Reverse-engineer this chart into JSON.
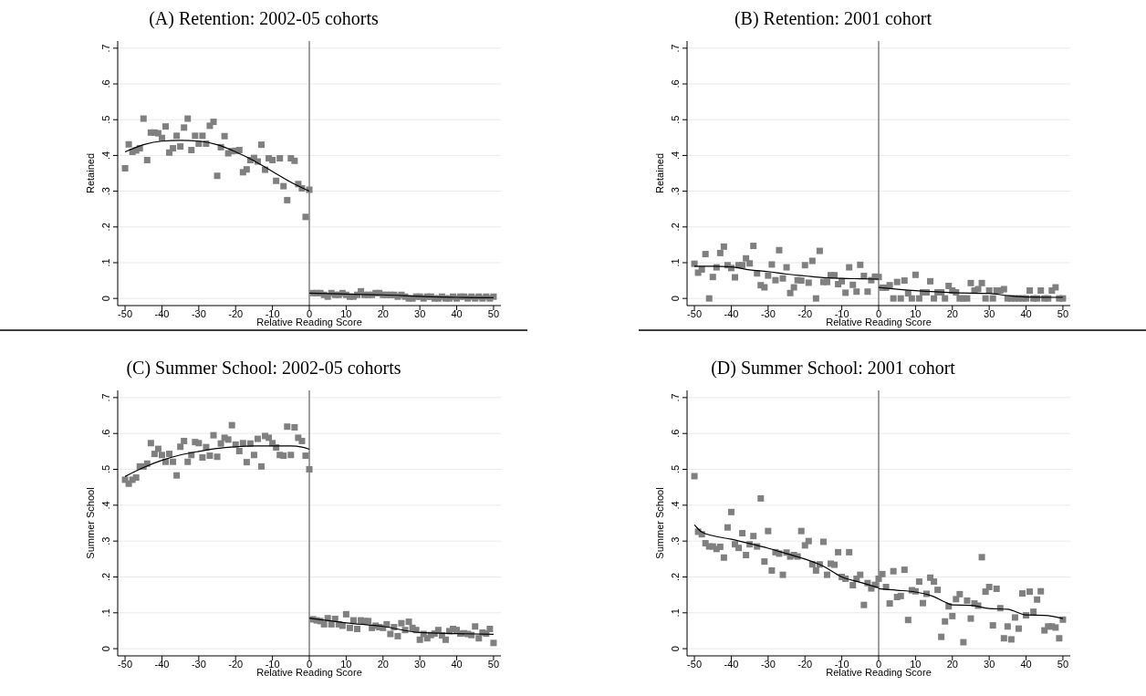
{
  "chart_data": [
    {
      "type": "scatter",
      "title": "(A) Retention: 2002-05 cohorts",
      "xlabel": "Relative Reading Score",
      "ylabel": "Retained",
      "xlim": [
        -52,
        52
      ],
      "ylim": [
        -0.02,
        0.72
      ],
      "xticks": [
        -50,
        -40,
        -30,
        -20,
        -10,
        0,
        10,
        20,
        30,
        40,
        50
      ],
      "yticks": [
        {
          "value": 0,
          "label": "0"
        },
        {
          "value": 0.1,
          "label": ".1"
        },
        {
          "value": 0.2,
          "label": ".2"
        },
        {
          "value": 0.3,
          "label": ".3"
        },
        {
          "value": 0.4,
          "label": ".4"
        },
        {
          "value": 0.5,
          "label": ".5"
        },
        {
          "value": 0.6,
          "label": ".6"
        },
        {
          "value": 0.7,
          "label": ".7"
        }
      ],
      "grid": "y",
      "marker": "square",
      "ref_lines": [
        {
          "axis": "x",
          "value": 0,
          "color": "#808080"
        }
      ],
      "x": [
        -50,
        -49,
        -48,
        -47,
        -46,
        -45,
        -44,
        -43,
        -42,
        -41,
        -40,
        -39,
        -38,
        -37,
        -36,
        -35,
        -34,
        -33,
        -32,
        -31,
        -30,
        -29,
        -28,
        -27,
        -26,
        -25,
        -24,
        -23,
        -22,
        -21,
        -20,
        -19,
        -18,
        -17,
        -16,
        -15,
        -14,
        -13,
        -12,
        -11,
        -10,
        -9,
        -8,
        -7,
        -6,
        -5,
        -4,
        -3,
        -2,
        -1,
        0,
        1,
        2,
        3,
        4,
        5,
        6,
        7,
        8,
        9,
        10,
        11,
        12,
        13,
        14,
        15,
        16,
        17,
        18,
        19,
        20,
        21,
        22,
        23,
        24,
        25,
        26,
        27,
        28,
        29,
        30,
        31,
        32,
        33,
        34,
        35,
        36,
        37,
        38,
        39,
        40,
        41,
        42,
        43,
        44,
        45,
        46,
        47,
        48,
        49,
        50
      ],
      "series": [
        {
          "color": "#808080",
          "values": [
            0.364,
            0.431,
            0.41,
            0.414,
            0.42,
            0.503,
            0.387,
            0.464,
            0.464,
            0.462,
            0.449,
            0.481,
            0.408,
            0.42,
            0.455,
            0.425,
            0.478,
            0.503,
            0.415,
            0.455,
            0.433,
            0.455,
            0.433,
            0.483,
            0.494,
            0.343,
            0.423,
            0.454,
            0.406,
            0.412,
            0.413,
            0.415,
            0.353,
            0.361,
            0.387,
            0.393,
            0.383,
            0.43,
            0.36,
            0.392,
            0.387,
            0.329,
            0.392,
            0.314,
            0.275,
            0.392,
            0.385,
            0.32,
            0.308,
            0.228,
            0.304,
            0.015,
            0.015,
            0.015,
            0.01,
            0.005,
            0.015,
            0.01,
            0.01,
            0.015,
            0.01,
            0.005,
            0.005,
            0.01,
            0.02,
            0.01,
            0.01,
            0.01,
            0.015,
            0.015,
            0.01,
            0.01,
            0.01,
            0.01,
            0.005,
            0.01,
            0.005,
            0,
            0,
            0.005,
            0.005,
            0,
            0.005,
            0.005,
            0,
            0,
            0.005,
            0,
            0,
            0.005,
            0,
            0.005,
            0.005,
            0,
            0.005,
            0,
            0.005,
            0,
            0.005,
            0,
            0.005
          ]
        },
        {
          "type": "line",
          "color": "#000000",
          "x": [
            -50,
            -45,
            -40,
            -35,
            -30,
            -25,
            -20,
            -15,
            -10,
            -5,
            0
          ],
          "marker": "none",
          "values": [
            0.41,
            0.43,
            0.44,
            0.442,
            0.44,
            0.43,
            0.41,
            0.385,
            0.355,
            0.325,
            0.3
          ]
        },
        {
          "type": "line",
          "color": "#000000",
          "x": [
            0,
            10,
            20,
            30,
            40,
            50
          ],
          "marker": "none",
          "values": [
            0.015,
            0.012,
            0.01,
            0.006,
            0.003,
            0.002
          ]
        }
      ]
    },
    {
      "type": "scatter",
      "title": "(B) Retention: 2001 cohort",
      "xlabel": "Relative Reading Score",
      "ylabel": "Retained",
      "xlim": [
        -52,
        52
      ],
      "ylim": [
        -0.02,
        0.72
      ],
      "xticks": [
        -50,
        -40,
        -30,
        -20,
        -10,
        0,
        10,
        20,
        30,
        40,
        50
      ],
      "yticks": [
        {
          "value": 0,
          "label": "0"
        },
        {
          "value": 0.1,
          "label": ".1"
        },
        {
          "value": 0.2,
          "label": ".2"
        },
        {
          "value": 0.3,
          "label": ".3"
        },
        {
          "value": 0.4,
          "label": ".4"
        },
        {
          "value": 0.5,
          "label": ".5"
        },
        {
          "value": 0.6,
          "label": ".6"
        },
        {
          "value": 0.7,
          "label": ".7"
        }
      ],
      "grid": "y",
      "marker": "square",
      "ref_lines": [
        {
          "axis": "x",
          "value": 0,
          "color": "#808080"
        }
      ],
      "x": [
        -50,
        -49,
        -48,
        -47,
        -46,
        -45,
        -44,
        -43,
        -42,
        -41,
        -40,
        -39,
        -38,
        -37,
        -36,
        -35,
        -34,
        -33,
        -32,
        -31,
        -30,
        -29,
        -28,
        -27,
        -26,
        -25,
        -24,
        -23,
        -22,
        -21,
        -20,
        -19,
        -18,
        -17,
        -16,
        -15,
        -14,
        -13,
        -12,
        -11,
        -10,
        -9,
        -8,
        -7,
        -6,
        -5,
        -4,
        -3,
        -2,
        -1,
        0,
        1,
        2,
        3,
        4,
        5,
        6,
        7,
        8,
        9,
        10,
        11,
        12,
        13,
        14,
        15,
        16,
        17,
        18,
        19,
        20,
        21,
        22,
        23,
        24,
        25,
        26,
        27,
        28,
        29,
        30,
        31,
        32,
        33,
        34,
        35,
        36,
        37,
        38,
        39,
        40,
        41,
        42,
        43,
        44,
        45,
        46,
        47,
        48,
        49,
        50
      ],
      "series": [
        {
          "color": "#808080",
          "values": [
            0.097,
            0.072,
            0.081,
            0.124,
            0,
            0.06,
            0.087,
            0.127,
            0.145,
            0.093,
            0.085,
            0.059,
            0.093,
            0.093,
            0.112,
            0.098,
            0.147,
            0.07,
            0.037,
            0.031,
            0.064,
            0.095,
            0.051,
            0.135,
            0.056,
            0.087,
            0.015,
            0.031,
            0.051,
            0.05,
            0.093,
            0.044,
            0.105,
            0,
            0.133,
            0.046,
            0.046,
            0.065,
            0.065,
            0.04,
            0.048,
            0.016,
            0.087,
            0.038,
            0.019,
            0.094,
            0.063,
            0.019,
            0.051,
            0.061,
            0.06,
            0.03,
            0.03,
            0.037,
            0,
            0.046,
            0,
            0.05,
            0.014,
            0,
            0.066,
            0,
            0.017,
            0.017,
            0.048,
            0,
            0.017,
            0.017,
            0,
            0.035,
            0.022,
            0.017,
            0,
            0,
            0,
            0.043,
            0.022,
            0.026,
            0.043,
            0,
            0.022,
            0,
            0.022,
            0.022,
            0.026,
            0,
            0,
            0,
            0,
            0,
            0,
            0.022,
            0,
            0,
            0.022,
            0,
            0,
            0.022,
            0.031,
            0,
            0
          ]
        },
        {
          "type": "line",
          "color": "#000000",
          "x": [
            -50,
            -45,
            -40,
            -35,
            -30,
            -25,
            -20,
            -15,
            -10,
            -5,
            0
          ],
          "marker": "none",
          "values": [
            0.09,
            0.09,
            0.088,
            0.08,
            0.075,
            0.068,
            0.063,
            0.058,
            0.056,
            0.055,
            0.054
          ]
        },
        {
          "type": "line",
          "color": "#000000",
          "x": [
            0,
            10,
            20,
            30,
            35,
            40,
            50
          ],
          "marker": "none",
          "values": [
            0.031,
            0.022,
            0.016,
            0.014,
            0.008,
            0.004,
            0.003
          ]
        }
      ]
    },
    {
      "type": "scatter",
      "title": "(C) Summer School: 2002-05 cohorts",
      "xlabel": "Relative Reading Score",
      "ylabel": "Summer School",
      "xlim": [
        -52,
        52
      ],
      "ylim": [
        -0.02,
        0.72
      ],
      "xticks": [
        -50,
        -40,
        -30,
        -20,
        -10,
        0,
        10,
        20,
        30,
        40,
        50
      ],
      "yticks": [
        {
          "value": 0,
          "label": "0"
        },
        {
          "value": 0.1,
          "label": ".1"
        },
        {
          "value": 0.2,
          "label": ".2"
        },
        {
          "value": 0.3,
          "label": ".3"
        },
        {
          "value": 0.4,
          "label": ".4"
        },
        {
          "value": 0.5,
          "label": ".5"
        },
        {
          "value": 0.6,
          "label": ".6"
        },
        {
          "value": 0.7,
          "label": ".7"
        }
      ],
      "grid": "y",
      "marker": "square",
      "ref_lines": [
        {
          "axis": "x",
          "value": 0,
          "color": "#808080"
        }
      ],
      "x": [
        -50,
        -49,
        -48,
        -47,
        -46,
        -45,
        -44,
        -43,
        -42,
        -41,
        -40,
        -39,
        -38,
        -37,
        -36,
        -35,
        -34,
        -33,
        -32,
        -31,
        -30,
        -29,
        -28,
        -27,
        -26,
        -25,
        -24,
        -23,
        -22,
        -21,
        -20,
        -19,
        -18,
        -17,
        -16,
        -15,
        -14,
        -13,
        -12,
        -11,
        -10,
        -9,
        -8,
        -7,
        -6,
        -5,
        -4,
        -3,
        -2,
        -1,
        0,
        1,
        2,
        3,
        4,
        5,
        6,
        7,
        8,
        9,
        10,
        11,
        12,
        13,
        14,
        15,
        16,
        17,
        18,
        19,
        20,
        21,
        22,
        23,
        24,
        25,
        26,
        27,
        28,
        29,
        30,
        31,
        32,
        33,
        34,
        35,
        36,
        37,
        38,
        39,
        40,
        41,
        42,
        43,
        44,
        45,
        46,
        47,
        48,
        49,
        50
      ],
      "series": [
        {
          "color": "#808080",
          "values": [
            0.471,
            0.46,
            0.471,
            0.477,
            0.508,
            0.508,
            0.516,
            0.573,
            0.543,
            0.557,
            0.54,
            0.521,
            0.543,
            0.521,
            0.483,
            0.563,
            0.579,
            0.521,
            0.54,
            0.576,
            0.573,
            0.533,
            0.562,
            0.538,
            0.595,
            0.535,
            0.572,
            0.588,
            0.583,
            0.623,
            0.569,
            0.551,
            0.573,
            0.52,
            0.572,
            0.54,
            0.585,
            0.508,
            0.593,
            0.588,
            0.573,
            0.561,
            0.54,
            0.538,
            0.619,
            0.54,
            0.617,
            0.588,
            0.579,
            0.538,
            0.5,
            0.082,
            0.079,
            0.077,
            0.068,
            0.085,
            0.068,
            0.083,
            0.068,
            0.064,
            0.096,
            0.058,
            0.079,
            0.055,
            0.079,
            0.077,
            0.077,
            0.058,
            0.064,
            0.06,
            0.058,
            0.068,
            0.041,
            0.06,
            0.035,
            0.071,
            0.052,
            0.075,
            0.058,
            0.052,
            0.025,
            0.041,
            0.029,
            0.038,
            0.042,
            0.052,
            0.037,
            0.025,
            0.049,
            0.055,
            0.052,
            0.042,
            0.043,
            0.041,
            0.038,
            0.062,
            0.029,
            0.045,
            0.042,
            0.055,
            0.016
          ]
        },
        {
          "type": "line",
          "color": "#000000",
          "x": [
            -50,
            -45,
            -40,
            -35,
            -30,
            -25,
            -20,
            -15,
            -10,
            -5,
            -2,
            0
          ],
          "marker": "none",
          "values": [
            0.48,
            0.505,
            0.525,
            0.54,
            0.55,
            0.558,
            0.563,
            0.565,
            0.565,
            0.565,
            0.562,
            0.556
          ]
        },
        {
          "type": "line",
          "color": "#000000",
          "x": [
            0,
            10,
            20,
            30,
            40,
            50
          ],
          "marker": "none",
          "values": [
            0.085,
            0.072,
            0.062,
            0.045,
            0.042,
            0.04
          ]
        }
      ]
    },
    {
      "type": "scatter",
      "title": "(D) Summer School: 2001 cohort",
      "xlabel": "Relative Reading Score",
      "ylabel": "Summer School",
      "xlim": [
        -52,
        52
      ],
      "ylim": [
        -0.02,
        0.72
      ],
      "xticks": [
        -50,
        -40,
        -30,
        -20,
        -10,
        0,
        10,
        20,
        30,
        40,
        50
      ],
      "yticks": [
        {
          "value": 0,
          "label": "0"
        },
        {
          "value": 0.1,
          "label": ".1"
        },
        {
          "value": 0.2,
          "label": ".2"
        },
        {
          "value": 0.3,
          "label": ".3"
        },
        {
          "value": 0.4,
          "label": ".4"
        },
        {
          "value": 0.5,
          "label": ".5"
        },
        {
          "value": 0.6,
          "label": ".6"
        },
        {
          "value": 0.7,
          "label": ".7"
        }
      ],
      "grid": "y",
      "marker": "square",
      "ref_lines": [
        {
          "axis": "x",
          "value": 0,
          "color": "#808080"
        }
      ],
      "x": [
        -50,
        -49,
        -48,
        -47,
        -46,
        -45,
        -44,
        -43,
        -42,
        -41,
        -40,
        -39,
        -38,
        -37,
        -36,
        -35,
        -34,
        -33,
        -32,
        -31,
        -30,
        -29,
        -28,
        -27,
        -26,
        -25,
        -24,
        -23,
        -22,
        -21,
        -20,
        -19,
        -18,
        -17,
        -16,
        -15,
        -14,
        -13,
        -12,
        -11,
        -10,
        -9,
        -8,
        -7,
        -6,
        -5,
        -4,
        -3,
        -2,
        -1,
        0,
        1,
        2,
        3,
        4,
        5,
        6,
        7,
        8,
        9,
        10,
        11,
        12,
        13,
        14,
        15,
        16,
        17,
        18,
        19,
        20,
        21,
        22,
        23,
        24,
        25,
        26,
        27,
        28,
        29,
        30,
        31,
        32,
        33,
        34,
        35,
        36,
        37,
        38,
        39,
        40,
        41,
        42,
        43,
        44,
        45,
        46,
        47,
        48,
        49,
        50
      ],
      "series": [
        {
          "color": "#808080",
          "values": [
            0.481,
            0.326,
            0.319,
            0.294,
            0.285,
            0.285,
            0.278,
            0.284,
            0.254,
            0.338,
            0.381,
            0.291,
            0.281,
            0.322,
            0.261,
            0.291,
            0.314,
            0.285,
            0.419,
            0.243,
            0.328,
            0.218,
            0.269,
            0.265,
            0.206,
            0.268,
            0.257,
            0.261,
            0.257,
            0.328,
            0.288,
            0.3,
            0.235,
            0.218,
            0.235,
            0.298,
            0.206,
            0.237,
            0.234,
            0.269,
            0.2,
            0.195,
            0.269,
            0.177,
            0.195,
            0.206,
            0.122,
            0.183,
            0.168,
            0.178,
            0.195,
            0.208,
            0.172,
            0.126,
            0.216,
            0.144,
            0.147,
            0.22,
            0.08,
            0.163,
            0.16,
            0.187,
            0.127,
            0.153,
            0.198,
            0.187,
            0.164,
            0.033,
            0.076,
            0.118,
            0.091,
            0.138,
            0.152,
            0.018,
            0.134,
            0.084,
            0.126,
            0.12,
            0.255,
            0.159,
            0.172,
            0.065,
            0.167,
            0.113,
            0.029,
            0.062,
            0.026,
            0.087,
            0.056,
            0.154,
            0.093,
            0.159,
            0.103,
            0.137,
            0.16,
            0.051,
            0.062,
            0.062,
            0.059,
            0.029,
            0.081
          ]
        },
        {
          "type": "line",
          "color": "#000000",
          "x": [
            -50,
            -48,
            -45,
            -40,
            -35,
            -30,
            -25,
            -20,
            -15,
            -10,
            -5,
            0
          ],
          "marker": "none",
          "values": [
            0.345,
            0.325,
            0.315,
            0.305,
            0.293,
            0.28,
            0.265,
            0.25,
            0.23,
            0.2,
            0.185,
            0.17
          ]
        },
        {
          "type": "line",
          "color": "#000000",
          "x": [
            0,
            5,
            10,
            15,
            18,
            20,
            25,
            30,
            35,
            40,
            45,
            50
          ],
          "marker": "none",
          "values": [
            0.167,
            0.163,
            0.158,
            0.145,
            0.13,
            0.122,
            0.121,
            0.112,
            0.11,
            0.094,
            0.093,
            0.084
          ]
        }
      ]
    }
  ]
}
